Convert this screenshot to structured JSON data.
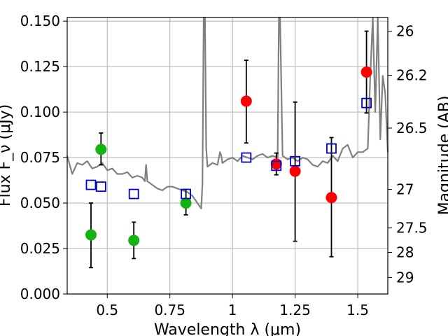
{
  "chart_data": {
    "type": "scatter",
    "xlabel": "Wavelength  λ (μm)",
    "ylabel": "Flux F_ν (μJy)",
    "ylabel_right": "Magnitude (AB)",
    "xlim": [
      0.34,
      1.62
    ],
    "ylim": [
      0.0,
      0.152
    ],
    "grid": true,
    "x_ticks": [
      0.5,
      0.75,
      1.0,
      1.25,
      1.5
    ],
    "x_tick_labels": [
      "0.5",
      "0.75",
      "1",
      "1.25",
      "1.5"
    ],
    "y_ticks": [
      0.0,
      0.025,
      0.05,
      0.075,
      0.1,
      0.125,
      0.15
    ],
    "y_tick_labels": [
      "0.000",
      "0.025",
      "0.050",
      "0.075",
      "0.100",
      "0.125",
      "0.150"
    ],
    "right_ticks": [
      {
        "label": "26",
        "flux": 0.1445
      },
      {
        "label": "26.2",
        "flux": 0.1202
      },
      {
        "label": "26.5",
        "flux": 0.0912
      },
      {
        "label": "27",
        "flux": 0.0575
      },
      {
        "label": "27.5",
        "flux": 0.0363
      },
      {
        "label": "28",
        "flux": 0.0229
      },
      {
        "label": "29",
        "flux": 0.0091
      }
    ],
    "series": [
      {
        "marker": "circle",
        "color": "#12b312",
        "points": [
          {
            "x": 0.435,
            "y": 0.0325,
            "err_low": 0.0145,
            "err_high": 0.05
          },
          {
            "x": 0.475,
            "y": 0.0795,
            "err_low": 0.071,
            "err_high": 0.0885
          },
          {
            "x": 0.606,
            "y": 0.0295,
            "err_low": 0.0195,
            "err_high": 0.0395
          },
          {
            "x": 0.814,
            "y": 0.05,
            "err_low": 0.0435,
            "err_high": 0.0575
          }
        ]
      },
      {
        "marker": "circle",
        "color": "#ff0000",
        "points": [
          {
            "x": 1.055,
            "y": 0.106,
            "err_low": 0.083,
            "err_high": 0.1285
          },
          {
            "x": 1.175,
            "y": 0.0715,
            "err_low": 0.0655,
            "err_high": 0.0775
          },
          {
            "x": 1.25,
            "y": 0.0675,
            "err_low": 0.029,
            "err_high": 0.1055
          },
          {
            "x": 1.395,
            "y": 0.053,
            "err_low": 0.0205,
            "err_high": 0.086
          },
          {
            "x": 1.535,
            "y": 0.122,
            "err_low": 0.0995,
            "err_high": 0.1445
          }
        ]
      },
      {
        "marker": "open-square",
        "color": "#0000cc",
        "points": [
          {
            "x": 0.435,
            "y": 0.06
          },
          {
            "x": 0.475,
            "y": 0.059
          },
          {
            "x": 0.606,
            "y": 0.055
          },
          {
            "x": 0.814,
            "y": 0.055
          },
          {
            "x": 1.055,
            "y": 0.075
          },
          {
            "x": 1.175,
            "y": 0.0705
          },
          {
            "x": 1.25,
            "y": 0.073
          },
          {
            "x": 1.395,
            "y": 0.08
          },
          {
            "x": 1.535,
            "y": 0.105
          }
        ]
      },
      {
        "marker": "line",
        "color": "#808080",
        "x": [
          0.34,
          0.36,
          0.38,
          0.4,
          0.42,
          0.44,
          0.46,
          0.48,
          0.5,
          0.52,
          0.54,
          0.56,
          0.58,
          0.6,
          0.62,
          0.64,
          0.65,
          0.655,
          0.66,
          0.68,
          0.7,
          0.72,
          0.74,
          0.76,
          0.78,
          0.8,
          0.82,
          0.84,
          0.86,
          0.875,
          0.88,
          0.885,
          0.89,
          0.895,
          0.9,
          0.92,
          0.94,
          0.95,
          0.955,
          0.96,
          0.98,
          1.0,
          1.02,
          1.04,
          1.06,
          1.08,
          1.1,
          1.12,
          1.14,
          1.16,
          1.18,
          1.185,
          1.19,
          1.2,
          1.22,
          1.24,
          1.26,
          1.28,
          1.3,
          1.32,
          1.34,
          1.36,
          1.38,
          1.4,
          1.42,
          1.44,
          1.46,
          1.48,
          1.5,
          1.52,
          1.54,
          1.55,
          1.56,
          1.57,
          1.58,
          1.59,
          1.6,
          1.61,
          1.62
        ],
        "y": [
          0.076,
          0.066,
          0.072,
          0.071,
          0.073,
          0.069,
          0.07,
          0.072,
          0.068,
          0.069,
          0.066,
          0.066,
          0.067,
          0.064,
          0.065,
          0.064,
          0.062,
          0.071,
          0.062,
          0.06,
          0.058,
          0.057,
          0.059,
          0.059,
          0.058,
          0.057,
          0.056,
          0.054,
          0.05,
          0.047,
          0.06,
          0.152,
          0.152,
          0.08,
          0.07,
          0.072,
          0.071,
          0.078,
          0.076,
          0.072,
          0.074,
          0.075,
          0.073,
          0.076,
          0.075,
          0.074,
          0.076,
          0.077,
          0.075,
          0.076,
          0.075,
          0.152,
          0.152,
          0.076,
          0.074,
          0.075,
          0.073,
          0.075,
          0.074,
          0.071,
          0.07,
          0.073,
          0.072,
          0.076,
          0.073,
          0.08,
          0.082,
          0.075,
          0.078,
          0.078,
          0.08,
          0.12,
          0.152,
          0.1,
          0.152,
          0.085,
          0.12,
          0.11,
          0.078
        ]
      }
    ]
  }
}
